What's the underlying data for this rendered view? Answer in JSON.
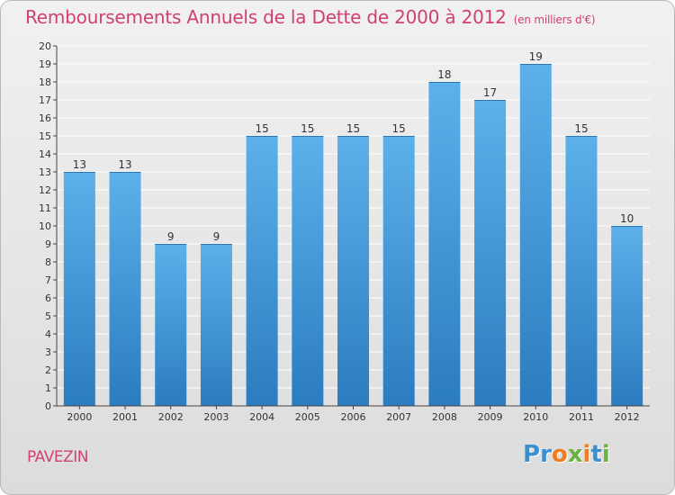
{
  "title": "Remboursements Annuels de la Dette de 2000 à 2012",
  "unit_label": "(en milliers d'€)",
  "commune": "PAVEZIN",
  "logo": {
    "text": "Proxiti",
    "letters": [
      {
        "ch": "P",
        "color": "#3a8fd0"
      },
      {
        "ch": "r",
        "color": "#3a8fd0"
      },
      {
        "ch": "o",
        "color": "#f07d1e"
      },
      {
        "ch": "x",
        "color": "#6bb33f"
      },
      {
        "ch": "i",
        "color": "#f07d1e"
      },
      {
        "ch": "t",
        "color": "#3a8fd0"
      },
      {
        "ch": "i",
        "color": "#6bb33f"
      }
    ]
  },
  "colors": {
    "title": "#d0426d",
    "bar_top": "#5cb1ea",
    "bar_bottom": "#2b7cc0",
    "axis": "#444444",
    "grid": "#ffffff"
  },
  "chart_data": {
    "type": "bar",
    "title": "Remboursements Annuels de la Dette de 2000 à 2012",
    "xlabel": "",
    "ylabel": "(en milliers d'€)",
    "categories": [
      "2000",
      "2001",
      "2002",
      "2003",
      "2004",
      "2005",
      "2006",
      "2007",
      "2008",
      "2009",
      "2010",
      "2011",
      "2012"
    ],
    "values": [
      13,
      13,
      9,
      9,
      15,
      15,
      15,
      15,
      18,
      17,
      19,
      15,
      10
    ],
    "ylim": [
      0,
      20
    ],
    "yticks": [
      0,
      1,
      2,
      3,
      4,
      5,
      6,
      7,
      8,
      9,
      10,
      11,
      12,
      13,
      14,
      15,
      16,
      17,
      18,
      19,
      20
    ],
    "grid": true
  }
}
